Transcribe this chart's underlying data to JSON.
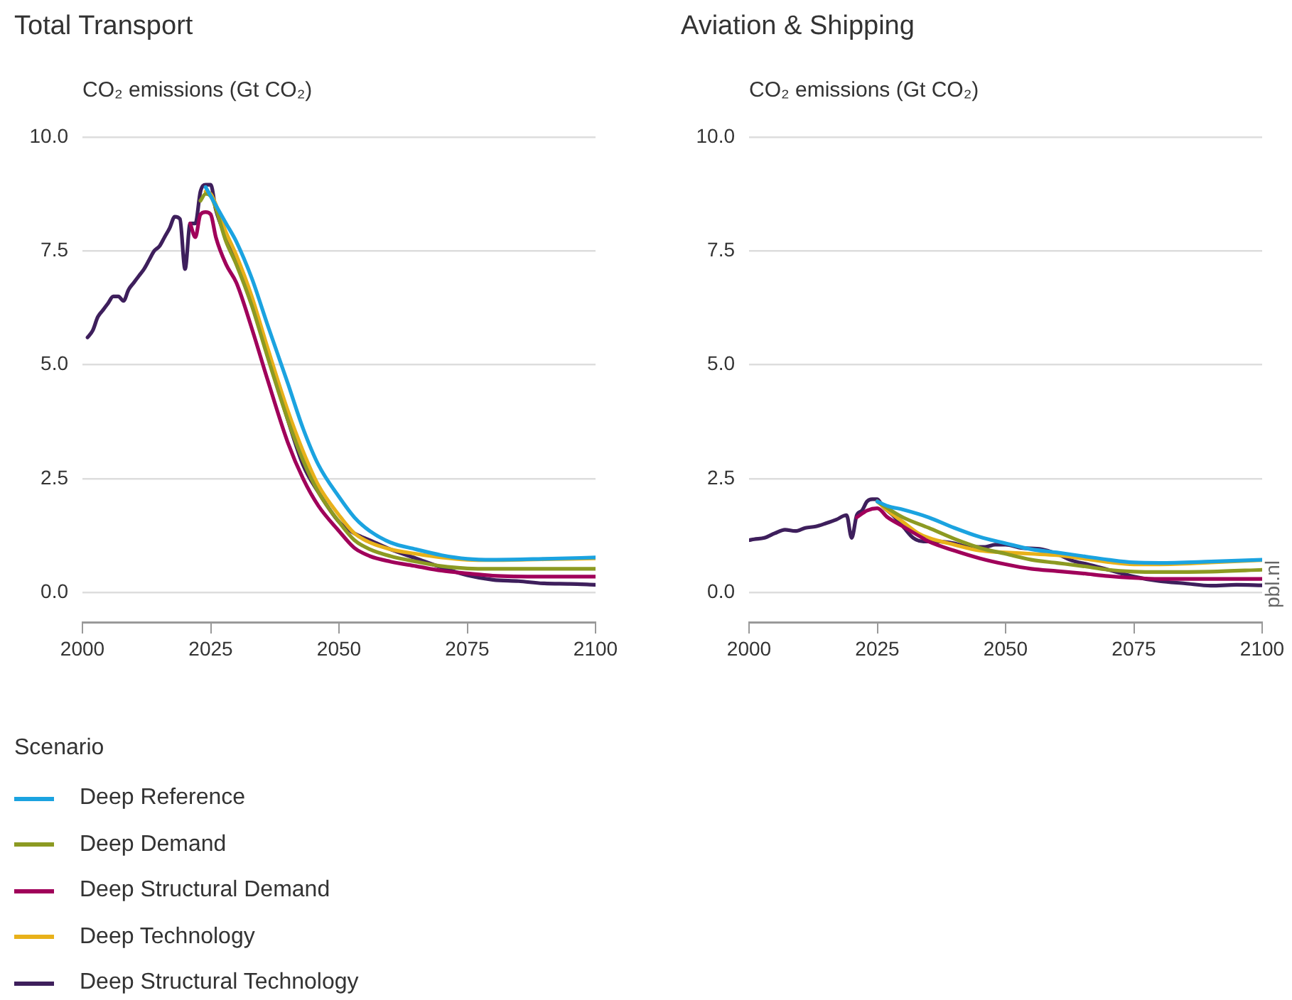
{
  "chart_data": [
    {
      "type": "line",
      "title": "Total Transport",
      "ylabel": "CO₂ emissions (Gt CO₂)",
      "legend": "bottom",
      "legend_title": "Scenario",
      "grid": "y",
      "xlim": [
        2000,
        2100
      ],
      "xticks": [
        2000,
        2025,
        2050,
        2075,
        2100
      ],
      "ylim": [
        -0.65,
        10
      ],
      "yticks": [
        {
          "value": 0,
          "label": "0.0"
        },
        {
          "value": 2.5,
          "label": "2.5"
        },
        {
          "value": 5,
          "label": "5.0"
        },
        {
          "value": 7.5,
          "label": "7.5"
        },
        {
          "value": 10,
          "label": "10.0"
        }
      ],
      "series": [
        {
          "name": "Deep Reference",
          "color": "#1ba3e0",
          "x": [
            2024,
            2025,
            2028,
            2030,
            2033,
            2036,
            2040,
            2043,
            2046,
            2050,
            2053,
            2056,
            2060,
            2065,
            2070,
            2075,
            2080,
            2090,
            2100
          ],
          "values": [
            8.9,
            8.7,
            8.1,
            7.7,
            6.9,
            5.9,
            4.6,
            3.6,
            2.8,
            2.1,
            1.65,
            1.35,
            1.1,
            0.95,
            0.82,
            0.74,
            0.72,
            0.74,
            0.77
          ]
        },
        {
          "name": "Deep Demand",
          "color": "#8c9a22",
          "x": [
            2023,
            2024,
            2025,
            2028,
            2030,
            2033,
            2036,
            2040,
            2043,
            2046,
            2050,
            2053,
            2056,
            2060,
            2065,
            2070,
            2075,
            2080,
            2090,
            2100
          ],
          "values": [
            8.6,
            8.75,
            8.7,
            7.7,
            7.2,
            6.3,
            5.2,
            3.8,
            2.9,
            2.2,
            1.55,
            1.15,
            0.95,
            0.8,
            0.68,
            0.58,
            0.53,
            0.52,
            0.52,
            0.52
          ]
        },
        {
          "name": "Deep Structural Demand",
          "color": "#a0005a",
          "x": [
            2021,
            2022,
            2023,
            2024,
            2025,
            2026,
            2028,
            2030,
            2033,
            2036,
            2040,
            2043,
            2046,
            2050,
            2053,
            2056,
            2060,
            2065,
            2070,
            2075,
            2080,
            2090,
            2100
          ],
          "values": [
            8.1,
            7.8,
            8.3,
            8.35,
            8.3,
            7.8,
            7.2,
            6.8,
            5.8,
            4.7,
            3.3,
            2.5,
            1.9,
            1.35,
            0.98,
            0.8,
            0.68,
            0.58,
            0.48,
            0.42,
            0.37,
            0.35,
            0.35
          ]
        },
        {
          "name": "Deep Technology",
          "color": "#e8b11a",
          "x": [
            2024,
            2025,
            2028,
            2030,
            2033,
            2036,
            2040,
            2043,
            2046,
            2050,
            2053,
            2056,
            2060,
            2065,
            2070,
            2075,
            2080,
            2090,
            2100
          ],
          "values": [
            8.8,
            8.75,
            7.9,
            7.4,
            6.5,
            5.4,
            4.0,
            3.1,
            2.35,
            1.7,
            1.3,
            1.1,
            0.95,
            0.85,
            0.77,
            0.72,
            0.71,
            0.73,
            0.75
          ]
        },
        {
          "name": "Deep Structural Technology",
          "color": "#3e1f5c",
          "x": [
            2001,
            2002,
            2003,
            2004,
            2005,
            2006,
            2007,
            2008,
            2009,
            2010,
            2011,
            2012,
            2013,
            2014,
            2015,
            2016,
            2017,
            2018,
            2019,
            2020,
            2021,
            2022,
            2023,
            2024,
            2025,
            2026,
            2028,
            2030,
            2033,
            2036,
            2040,
            2043,
            2046,
            2050,
            2053,
            2056,
            2060,
            2065,
            2070,
            2075,
            2080,
            2085,
            2090,
            2095,
            2100
          ],
          "values": [
            5.6,
            5.75,
            6.05,
            6.2,
            6.35,
            6.5,
            6.5,
            6.4,
            6.65,
            6.8,
            6.95,
            7.1,
            7.3,
            7.5,
            7.6,
            7.8,
            8.0,
            8.25,
            8.2,
            7.1,
            8.1,
            8.1,
            8.8,
            8.95,
            8.95,
            8.4,
            7.8,
            7.3,
            6.4,
            5.3,
            3.8,
            2.8,
            2.2,
            1.55,
            1.3,
            1.15,
            0.95,
            0.75,
            0.55,
            0.38,
            0.28,
            0.25,
            0.2,
            0.19,
            0.17
          ]
        }
      ]
    },
    {
      "type": "line",
      "title": "Aviation & Shipping",
      "ylabel": "CO₂ emissions (Gt CO₂)",
      "legend": false,
      "grid": "y",
      "annotations": [
        "pbl.nl"
      ],
      "xlim": [
        2000,
        2100
      ],
      "xticks": [
        2000,
        2025,
        2050,
        2075,
        2100
      ],
      "ylim": [
        -0.65,
        10
      ],
      "yticks": [
        {
          "value": 0,
          "label": "0.0"
        },
        {
          "value": 2.5,
          "label": "2.5"
        },
        {
          "value": 5,
          "label": "5.0"
        },
        {
          "value": 7.5,
          "label": "7.5"
        },
        {
          "value": 10,
          "label": "10.0"
        }
      ],
      "series": [
        {
          "color": "#1ba3e0",
          "x": [
            2025,
            2027,
            2030,
            2035,
            2040,
            2045,
            2050,
            2055,
            2060,
            2065,
            2070,
            2075,
            2080,
            2090,
            2100
          ],
          "values": [
            2.0,
            1.9,
            1.82,
            1.65,
            1.42,
            1.22,
            1.08,
            0.95,
            0.88,
            0.8,
            0.72,
            0.66,
            0.65,
            0.68,
            0.72
          ]
        },
        {
          "color": "#8c9a22",
          "x": [
            2025,
            2027,
            2030,
            2035,
            2040,
            2045,
            2050,
            2055,
            2060,
            2065,
            2070,
            2075,
            2080,
            2090,
            2100
          ],
          "values": [
            2.0,
            1.85,
            1.65,
            1.42,
            1.18,
            0.98,
            0.85,
            0.72,
            0.65,
            0.58,
            0.5,
            0.46,
            0.45,
            0.46,
            0.5
          ]
        },
        {
          "color": "#a0005a",
          "x": [
            2021,
            2023,
            2025,
            2027,
            2030,
            2033,
            2035,
            2040,
            2045,
            2050,
            2055,
            2060,
            2065,
            2070,
            2075,
            2080,
            2090,
            2100
          ],
          "values": [
            1.65,
            1.8,
            1.85,
            1.65,
            1.45,
            1.25,
            1.12,
            0.92,
            0.75,
            0.62,
            0.52,
            0.47,
            0.42,
            0.36,
            0.32,
            0.3,
            0.3,
            0.3
          ]
        },
        {
          "color": "#e8b11a",
          "x": [
            2025,
            2027,
            2030,
            2033,
            2035,
            2040,
            2045,
            2050,
            2055,
            2060,
            2065,
            2070,
            2075,
            2080,
            2090,
            2100
          ],
          "values": [
            2.0,
            1.8,
            1.55,
            1.3,
            1.2,
            1.05,
            0.92,
            0.88,
            0.85,
            0.82,
            0.75,
            0.67,
            0.62,
            0.62,
            0.66,
            0.71
          ]
        },
        {
          "color": "#3e1f5c",
          "x": [
            2000,
            2001,
            2003,
            2005,
            2007,
            2009,
            2011,
            2013,
            2015,
            2017,
            2019,
            2020,
            2021,
            2022,
            2023,
            2024,
            2025,
            2026,
            2028,
            2030,
            2032,
            2034,
            2037,
            2040,
            2043,
            2046,
            2048,
            2050,
            2053,
            2057,
            2060,
            2063,
            2066,
            2070,
            2075,
            2080,
            2085,
            2090,
            2095,
            2100
          ],
          "values": [
            1.15,
            1.17,
            1.2,
            1.3,
            1.38,
            1.35,
            1.42,
            1.45,
            1.52,
            1.6,
            1.7,
            1.2,
            1.7,
            1.8,
            2.0,
            2.05,
            2.05,
            1.9,
            1.7,
            1.45,
            1.2,
            1.12,
            1.12,
            1.08,
            1.0,
            1.0,
            1.05,
            1.05,
            0.98,
            0.95,
            0.85,
            0.7,
            0.62,
            0.5,
            0.35,
            0.25,
            0.2,
            0.15,
            0.17,
            0.16
          ]
        }
      ]
    }
  ]
}
